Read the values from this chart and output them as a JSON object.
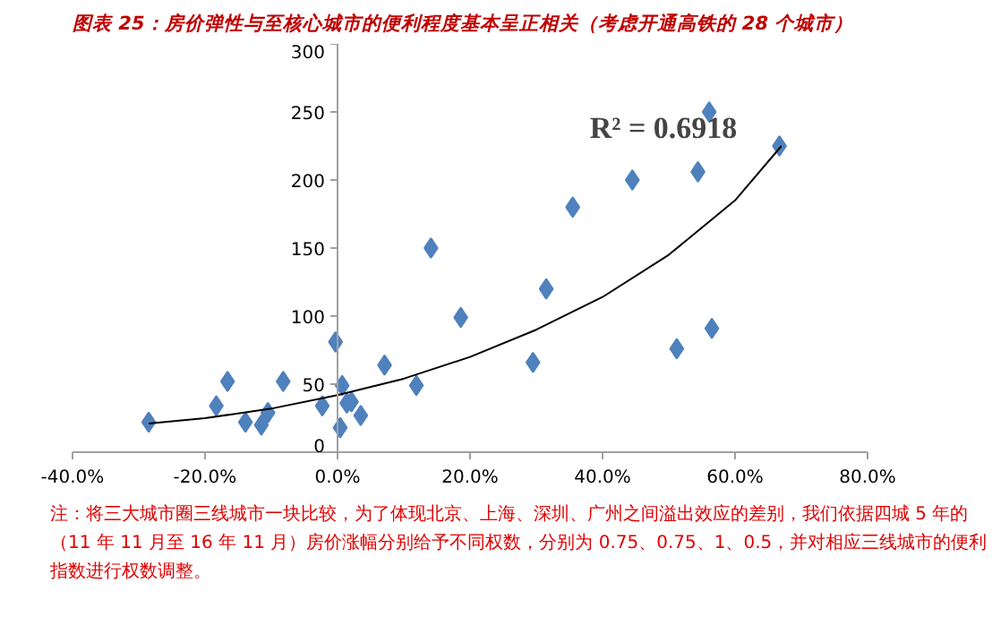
{
  "chart_data": {
    "type": "scatter",
    "title": "图表 25：房价弹性与至核心城市的便利程度基本呈正相关（考虑开通高铁的 28 个城市）",
    "grid": false,
    "xlim": [
      -40,
      80
    ],
    "ylim": [
      0,
      300
    ],
    "xticks": [
      {
        "value": -40,
        "label": "-40.0%"
      },
      {
        "value": -20,
        "label": "-20.0%"
      },
      {
        "value": 0,
        "label": "0.0%"
      },
      {
        "value": 20,
        "label": "20.0%"
      },
      {
        "value": 40,
        "label": "40.0%"
      },
      {
        "value": 60,
        "label": "60.0%"
      },
      {
        "value": 80,
        "label": "80.0%"
      }
    ],
    "yticks": [
      0,
      50,
      100,
      150,
      200,
      250,
      300
    ],
    "series": [
      {
        "color": "#4f81bd",
        "marker": "diamond",
        "x": [
          -28.5,
          -18.3,
          -16.6,
          -13.9,
          -11.5,
          -10.5,
          -8.2,
          -2.3,
          -0.3,
          0.4,
          0.7,
          1.4,
          2.1,
          3.5,
          7.1,
          11.9,
          14.1,
          18.6,
          29.5,
          31.5,
          35.5,
          44.5,
          54.4,
          56.1,
          66.7,
          51.2,
          56.5
        ],
        "values": [
          22,
          34,
          52,
          22,
          20,
          29,
          52,
          34,
          81,
          18,
          49,
          36,
          37,
          27,
          64,
          49,
          150,
          99,
          66,
          120,
          180,
          200,
          206,
          250,
          225,
          76,
          91
        ]
      },
      {
        "type": "line",
        "marker": "none",
        "color": "#000000",
        "x": [
          -28.5,
          -20,
          -10,
          0,
          10,
          20,
          30,
          40,
          50,
          60,
          67
        ],
        "values": [
          21,
          25,
          32,
          42,
          54,
          70,
          90,
          114,
          145,
          185,
          225
        ]
      }
    ],
    "annotations": [
      "R² = 0.6918",
      "注：将三大城市圈三线城市一块比较，为了体现北京、上海、深圳、广州之间溢出效应的差别，我们依据四城 5 年的（11 年 11 月至 16 年 11 月）房价涨幅分别给予不同权数，分别为 0.75、0.75、1、0.5，并对相应三线城市的便利指数进行权数调整。"
    ]
  }
}
